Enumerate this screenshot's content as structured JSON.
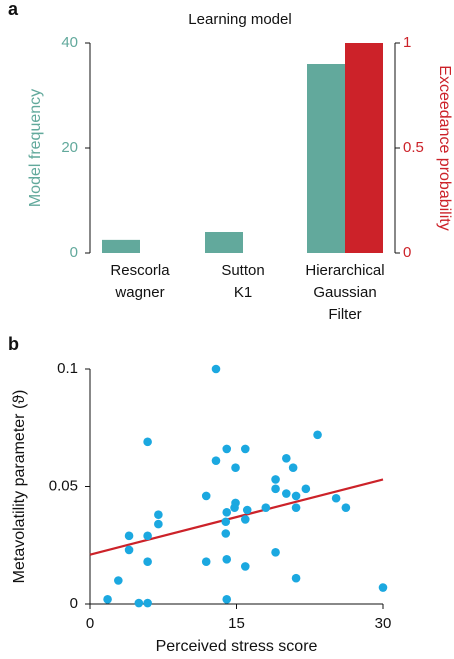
{
  "chart_data": [
    {
      "type": "bar",
      "panel_label": "a",
      "title": "Learning model",
      "categories": [
        [
          "Rescorla",
          "wagner"
        ],
        [
          "Sutton",
          "K1"
        ],
        [
          "Hierarchical",
          "Gaussian",
          "Filter"
        ]
      ],
      "series": [
        {
          "name": "Model frequency",
          "color": "#62a99c",
          "values": [
            2.5,
            4,
            36
          ]
        },
        {
          "name": "Exceedance probability",
          "color": "#cc2229",
          "axis": "y2",
          "values": [
            0,
            0,
            1
          ]
        }
      ],
      "ylabel": "Model frequency",
      "y2label": "Exceedance probability",
      "ylim": [
        0,
        40
      ],
      "yticks": [
        0,
        20,
        40
      ],
      "y2lim": [
        0,
        1
      ],
      "y2ticks": [
        0,
        0.5,
        1
      ]
    },
    {
      "type": "scatter",
      "panel_label": "b",
      "xlabel": "Perceived stress score",
      "ylabel": "Metavolatility parameter (ϑ)",
      "color": "#1ba8e0",
      "x": [
        12.9,
        5.9,
        23.3,
        14.0,
        15.9,
        12.9,
        20.1,
        14.9,
        20.8,
        19.0,
        11.9,
        19.0,
        20.1,
        21.1,
        22.1,
        25.2,
        26.2,
        21.1,
        18.0,
        14.9,
        14.8,
        16.1,
        14.0,
        7.0,
        7.0,
        15.9,
        13.9,
        13.9,
        4.0,
        5.9,
        4.0,
        5.9,
        11.9,
        14.0,
        15.9,
        19.0,
        2.9,
        1.8,
        5.0,
        5.9,
        14.0,
        21.1,
        30
      ],
      "y": [
        0.1,
        0.069,
        0.072,
        0.066,
        0.066,
        0.061,
        0.062,
        0.058,
        0.058,
        0.053,
        0.046,
        0.049,
        0.047,
        0.046,
        0.049,
        0.045,
        0.041,
        0.041,
        0.041,
        0.043,
        0.041,
        0.04,
        0.039,
        0.038,
        0.034,
        0.036,
        0.03,
        0.035,
        0.029,
        0.029,
        0.023,
        0.018,
        0.018,
        0.019,
        0.016,
        0.022,
        0.01,
        0.002,
        0.0004,
        0.0004,
        0.002,
        0.011,
        0.007
      ],
      "trend_line": {
        "x": [
          0,
          30
        ],
        "y": [
          0.021,
          0.053
        ],
        "color": "#cc2229"
      },
      "xlim": [
        0,
        30
      ],
      "xticks": [
        0,
        15,
        30
      ],
      "ylim": [
        0,
        0.1
      ],
      "yticks": [
        0,
        0.05,
        0.1
      ]
    }
  ]
}
